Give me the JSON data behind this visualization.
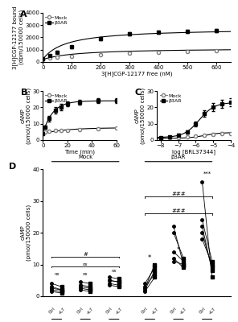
{
  "panel_A": {
    "mock_x": [
      0,
      25,
      50,
      100,
      200,
      300,
      400,
      500,
      600
    ],
    "mock_y": [
      200,
      280,
      350,
      450,
      600,
      700,
      780,
      850,
      900
    ],
    "mock_err": [
      30,
      40,
      40,
      50,
      50,
      60,
      60,
      70,
      70
    ],
    "b3ar_x": [
      0,
      25,
      50,
      100,
      200,
      300,
      400,
      500,
      600
    ],
    "b3ar_y": [
      250,
      500,
      800,
      1200,
      1900,
      2300,
      2400,
      2500,
      2550
    ],
    "b3ar_err": [
      40,
      60,
      80,
      100,
      120,
      150,
      140,
      130,
      120
    ],
    "xlabel": "3[H]CGP-12177 free (nM)",
    "ylabel": "3[H]CGP-12177 bound\n(dpm/150000 cells)",
    "ylim": [
      0,
      4000
    ],
    "xlim": [
      0,
      650
    ],
    "yticks": [
      0,
      1000,
      2000,
      3000,
      4000
    ],
    "xticks": [
      0,
      100,
      200,
      300,
      400,
      500,
      600
    ]
  },
  "panel_B": {
    "mock_x": [
      0,
      2,
      5,
      10,
      15,
      20,
      30,
      45,
      60
    ],
    "mock_y": [
      4,
      5,
      5.5,
      6,
      6,
      6,
      6.5,
      7,
      7.5
    ],
    "mock_err": [
      0.5,
      0.5,
      0.5,
      0.5,
      0.5,
      0.5,
      0.5,
      0.5,
      0.5
    ],
    "b3ar_x": [
      0,
      2,
      5,
      10,
      15,
      20,
      30,
      45,
      60
    ],
    "b3ar_y": [
      4,
      8,
      13,
      18,
      20,
      22,
      23,
      24,
      24
    ],
    "b3ar_err": [
      0.5,
      1.0,
      1.5,
      2.0,
      2.0,
      1.5,
      1.5,
      1.5,
      1.5
    ],
    "xlabel": "Time (min)",
    "ylabel": "cAMP\n(pmol/150000 cells)",
    "ylim": [
      0,
      30
    ],
    "xlim": [
      0,
      60
    ],
    "yticks": [
      0,
      10,
      20,
      30
    ],
    "xticks": [
      0,
      20,
      40,
      60
    ]
  },
  "panel_C": {
    "mock_x": [
      -8,
      -7.5,
      -7,
      -6.5,
      -6,
      -5.5,
      -5,
      -4.5,
      -4
    ],
    "mock_y": [
      1,
      1.2,
      1.5,
      2,
      2.5,
      3,
      3.5,
      4,
      4
    ],
    "mock_err": [
      0.3,
      0.3,
      0.4,
      0.4,
      0.5,
      0.5,
      0.6,
      0.6,
      0.5
    ],
    "b3ar_x": [
      -8,
      -7.5,
      -7,
      -6.5,
      -6,
      -5.5,
      -5,
      -4.5,
      -4
    ],
    "b3ar_y": [
      1.5,
      2,
      3,
      5,
      10,
      16,
      20,
      22,
      23
    ],
    "b3ar_err": [
      0.4,
      0.5,
      0.8,
      1.0,
      1.5,
      2.0,
      2.5,
      2.5,
      2.5
    ],
    "xlabel": "log [BRL37344]",
    "ylabel": "cAMP\n(pmol/150000 cells)",
    "ylim": [
      0,
      30
    ],
    "xlim": [
      -8.2,
      -4
    ],
    "yticks": [
      0,
      10,
      20,
      30
    ],
    "xticks": [
      -8,
      -7,
      -6,
      -5,
      -4
    ]
  },
  "panel_D": {
    "mock_basal_ctrl": [
      3,
      2,
      1.5,
      2.5,
      4
    ],
    "mock_basal_l7": [
      2,
      1.5,
      1,
      2,
      3
    ],
    "mock_1uM_ctrl": [
      3.5,
      2.5,
      2,
      3,
      4.5
    ],
    "mock_1uM_l7": [
      3,
      2,
      1.5,
      2.5,
      4
    ],
    "mock_10uM_ctrl": [
      5,
      4,
      3.5,
      5,
      6
    ],
    "mock_10uM_l7": [
      4.5,
      3.5,
      3,
      4.5,
      5.5
    ],
    "b3ar_basal_ctrl": [
      2,
      1.5,
      2.5,
      3,
      4
    ],
    "b3ar_basal_l7": [
      8,
      6,
      10,
      7,
      9
    ],
    "b3ar_1uM_ctrl": [
      11,
      12,
      14,
      20,
      22
    ],
    "b3ar_1uM_l7": [
      10,
      9,
      11,
      12,
      10
    ],
    "b3ar_10uM_ctrl": [
      18,
      20,
      22,
      24,
      36
    ],
    "b3ar_10uM_l7": [
      10,
      9,
      8,
      11,
      6
    ],
    "ylabel": "cAMP\n(pmol/150000 cells)",
    "ylim": [
      0,
      40
    ],
    "yticks": [
      0,
      10,
      20,
      30,
      40
    ]
  },
  "colors": {
    "mock": "#808080",
    "b3ar": "#000000"
  }
}
